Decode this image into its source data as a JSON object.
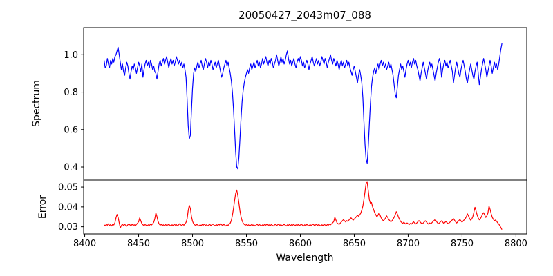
{
  "title": "20050427_2043m07_088",
  "colors": {
    "spectrum_line": "#0000ff",
    "error_line": "#ff0000",
    "axis": "#000000",
    "background": "#ffffff"
  },
  "x_axis": {
    "label": "Wavelength",
    "tick_labels": [
      "8400",
      "8450",
      "8500",
      "8550",
      "8600",
      "8650",
      "8700",
      "8750",
      "8800"
    ],
    "range": [
      8399,
      8810
    ]
  },
  "chart_data": [
    {
      "type": "line",
      "name": "spectrum",
      "ylabel": "Spectrum",
      "line_color": "#0000ff",
      "grid": false,
      "legend": "none",
      "x_start": 8418,
      "x_step": 1,
      "ylim": [
        0.33,
        1.145
      ],
      "ytick_labels": [
        "0.4",
        "0.6",
        "0.8",
        "1.0"
      ],
      "values": [
        0.97,
        0.93,
        0.94,
        0.98,
        0.95,
        0.93,
        0.97,
        0.95,
        0.98,
        0.96,
        0.99,
        1.0,
        1.02,
        1.04,
        1.0,
        0.96,
        0.92,
        0.95,
        0.91,
        0.89,
        0.93,
        0.96,
        0.94,
        0.9,
        0.87,
        0.91,
        0.94,
        0.92,
        0.95,
        0.93,
        0.9,
        0.93,
        0.96,
        0.94,
        0.91,
        0.95,
        0.88,
        0.92,
        0.95,
        0.97,
        0.94,
        0.96,
        0.93,
        0.97,
        0.95,
        0.92,
        0.94,
        0.91,
        0.9,
        0.87,
        0.91,
        0.95,
        0.97,
        0.94,
        0.96,
        0.98,
        0.95,
        0.97,
        0.99,
        0.96,
        0.93,
        0.96,
        0.98,
        0.95,
        0.97,
        0.94,
        0.96,
        0.99,
        0.97,
        0.95,
        0.97,
        0.94,
        0.96,
        0.93,
        0.95,
        0.92,
        0.88,
        0.76,
        0.62,
        0.55,
        0.57,
        0.7,
        0.82,
        0.9,
        0.93,
        0.91,
        0.94,
        0.96,
        0.93,
        0.95,
        0.97,
        0.94,
        0.92,
        0.95,
        0.98,
        0.96,
        0.93,
        0.96,
        0.94,
        0.97,
        0.95,
        0.92,
        0.94,
        0.96,
        0.93,
        0.95,
        0.97,
        0.94,
        0.91,
        0.88,
        0.9,
        0.93,
        0.95,
        0.97,
        0.94,
        0.96,
        0.93,
        0.9,
        0.86,
        0.8,
        0.71,
        0.6,
        0.48,
        0.4,
        0.39,
        0.45,
        0.55,
        0.66,
        0.75,
        0.81,
        0.85,
        0.88,
        0.9,
        0.92,
        0.9,
        0.93,
        0.95,
        0.92,
        0.94,
        0.96,
        0.93,
        0.95,
        0.97,
        0.94,
        0.96,
        0.93,
        0.95,
        0.98,
        0.95,
        0.97,
        0.99,
        0.96,
        0.94,
        0.97,
        0.95,
        0.98,
        0.96,
        0.93,
        0.95,
        0.97,
        1.0,
        0.97,
        0.94,
        0.96,
        0.99,
        0.96,
        0.98,
        0.95,
        0.97,
        1.0,
        1.02,
        0.98,
        0.95,
        0.97,
        0.94,
        0.96,
        0.98,
        0.95,
        0.93,
        0.96,
        0.98,
        0.96,
        0.99,
        0.97,
        0.94,
        0.96,
        0.93,
        0.95,
        0.97,
        0.95,
        0.92,
        0.95,
        0.97,
        0.99,
        0.96,
        0.94,
        0.96,
        0.98,
        0.95,
        0.97,
        0.94,
        0.96,
        0.99,
        0.97,
        0.95,
        0.98,
        0.96,
        0.93,
        0.96,
        0.98,
        1.0,
        0.97,
        0.95,
        0.98,
        0.96,
        0.94,
        0.97,
        0.95,
        0.92,
        0.95,
        0.97,
        0.94,
        0.96,
        0.93,
        0.95,
        0.97,
        0.94,
        0.96,
        0.93,
        0.91,
        0.89,
        0.92,
        0.94,
        0.91,
        0.88,
        0.85,
        0.89,
        0.92,
        0.89,
        0.85,
        0.77,
        0.64,
        0.52,
        0.44,
        0.42,
        0.51,
        0.63,
        0.74,
        0.83,
        0.88,
        0.91,
        0.93,
        0.9,
        0.93,
        0.95,
        0.92,
        0.95,
        0.97,
        0.94,
        0.96,
        0.93,
        0.95,
        0.92,
        0.94,
        0.96,
        0.93,
        0.95,
        0.92,
        0.89,
        0.84,
        0.79,
        0.77,
        0.83,
        0.89,
        0.92,
        0.95,
        0.92,
        0.94,
        0.91,
        0.88,
        0.92,
        0.95,
        0.97,
        0.94,
        0.96,
        0.93,
        0.96,
        0.98,
        0.95,
        0.97,
        0.94,
        0.92,
        0.89,
        0.86,
        0.9,
        0.93,
        0.96,
        0.93,
        0.9,
        0.87,
        0.91,
        0.94,
        0.96,
        0.93,
        0.95,
        0.92,
        0.89,
        0.86,
        0.9,
        0.93,
        0.96,
        0.98,
        0.95,
        0.88,
        0.92,
        0.95,
        0.97,
        0.94,
        0.96,
        0.93,
        0.95,
        0.97,
        0.94,
        0.91,
        0.85,
        0.89,
        0.93,
        0.96,
        0.93,
        0.9,
        0.88,
        0.92,
        0.95,
        0.97,
        0.94,
        0.91,
        0.87,
        0.85,
        0.89,
        0.92,
        0.95,
        0.92,
        0.89,
        0.87,
        0.91,
        0.94,
        0.96,
        0.9,
        0.84,
        0.88,
        0.92,
        0.95,
        0.98,
        0.95,
        0.92,
        0.88,
        0.91,
        0.94,
        0.97,
        0.94,
        0.9,
        0.93,
        0.96,
        0.93,
        0.95,
        0.92,
        0.95,
        0.99,
        1.03,
        1.06
      ]
    },
    {
      "type": "line",
      "name": "error",
      "ylabel": "Error",
      "line_color": "#ff0000",
      "grid": false,
      "legend": "none",
      "x_start": 8418,
      "x_step": 1,
      "ylim": [
        0.0264,
        0.0535
      ],
      "ytick_labels": [
        "0.03",
        "0.04",
        "0.05"
      ],
      "values": [
        0.031,
        0.0305,
        0.0312,
        0.0308,
        0.0315,
        0.0306,
        0.0311,
        0.0304,
        0.0313,
        0.0309,
        0.032,
        0.0345,
        0.0362,
        0.0348,
        0.032,
        0.0294,
        0.0306,
        0.0314,
        0.0305,
        0.0312,
        0.0308,
        0.0303,
        0.031,
        0.0315,
        0.0309,
        0.0306,
        0.0312,
        0.0307,
        0.031,
        0.0305,
        0.0312,
        0.0318,
        0.0325,
        0.0345,
        0.033,
        0.0316,
        0.031,
        0.0306,
        0.0311,
        0.0308,
        0.0305,
        0.031,
        0.0307,
        0.0312,
        0.0309,
        0.0315,
        0.0322,
        0.034,
        0.037,
        0.0352,
        0.0328,
        0.0314,
        0.0308,
        0.0312,
        0.0306,
        0.031,
        0.0305,
        0.0311,
        0.0307,
        0.0309,
        0.0312,
        0.0308,
        0.0304,
        0.031,
        0.0306,
        0.0313,
        0.0308,
        0.0311,
        0.0305,
        0.0309,
        0.0315,
        0.031,
        0.0306,
        0.0312,
        0.0308,
        0.0315,
        0.0322,
        0.034,
        0.0382,
        0.0408,
        0.0392,
        0.0352,
        0.0328,
        0.0315,
        0.031,
        0.0306,
        0.0312,
        0.0308,
        0.0304,
        0.031,
        0.0306,
        0.0311,
        0.0308,
        0.0313,
        0.0307,
        0.031,
        0.0305,
        0.0309,
        0.0312,
        0.0306,
        0.031,
        0.0314,
        0.0308,
        0.0305,
        0.0311,
        0.0307,
        0.0312,
        0.0309,
        0.0315,
        0.031,
        0.0306,
        0.0312,
        0.0308,
        0.0304,
        0.031,
        0.0307,
        0.0313,
        0.0318,
        0.0332,
        0.0358,
        0.0392,
        0.0432,
        0.0468,
        0.0485,
        0.0458,
        0.042,
        0.038,
        0.035,
        0.033,
        0.0318,
        0.0312,
        0.0308,
        0.0311,
        0.0306,
        0.031,
        0.0305,
        0.0308,
        0.0312,
        0.0307,
        0.031,
        0.0304,
        0.0309,
        0.0313,
        0.0306,
        0.0311,
        0.0308,
        0.0305,
        0.031,
        0.0307,
        0.0312,
        0.0308,
        0.0313,
        0.0306,
        0.031,
        0.0305,
        0.0311,
        0.0308,
        0.0304,
        0.0309,
        0.0312,
        0.0306,
        0.031,
        0.0313,
        0.0307,
        0.0311,
        0.0305,
        0.0309,
        0.0312,
        0.0308,
        0.0304,
        0.031,
        0.0307,
        0.0312,
        0.0306,
        0.0311,
        0.0308,
        0.0313,
        0.0305,
        0.031,
        0.0307,
        0.0311,
        0.0306,
        0.0309,
        0.0313,
        0.0308,
        0.0304,
        0.031,
        0.0306,
        0.0312,
        0.0308,
        0.0305,
        0.0311,
        0.0307,
        0.031,
        0.0313,
        0.0306,
        0.0309,
        0.0312,
        0.0307,
        0.0311,
        0.0308,
        0.0304,
        0.031,
        0.0306,
        0.0312,
        0.0309,
        0.0305,
        0.0311,
        0.0308,
        0.0313,
        0.031,
        0.0315,
        0.032,
        0.0326,
        0.0348,
        0.0334,
        0.032,
        0.0315,
        0.0312,
        0.0318,
        0.0324,
        0.033,
        0.0336,
        0.033,
        0.0324,
        0.0331,
        0.0327,
        0.0333,
        0.034,
        0.0345,
        0.0339,
        0.0333,
        0.0339,
        0.0345,
        0.0351,
        0.0358,
        0.0353,
        0.036,
        0.0368,
        0.0384,
        0.0404,
        0.0438,
        0.0478,
        0.052,
        0.0524,
        0.0482,
        0.0436,
        0.0418,
        0.0422,
        0.04,
        0.0386,
        0.037,
        0.036,
        0.035,
        0.0358,
        0.037,
        0.0358,
        0.0344,
        0.0336,
        0.033,
        0.0336,
        0.0344,
        0.0355,
        0.0347,
        0.0337,
        0.033,
        0.0325,
        0.033,
        0.0338,
        0.0348,
        0.036,
        0.0376,
        0.0364,
        0.0349,
        0.0337,
        0.0327,
        0.0321,
        0.0317,
        0.0323,
        0.0317,
        0.0313,
        0.0319,
        0.0315,
        0.0311,
        0.0317,
        0.0313,
        0.0319,
        0.0325,
        0.0319,
        0.0314,
        0.0319,
        0.0325,
        0.0331,
        0.0325,
        0.0319,
        0.0314,
        0.0319,
        0.0325,
        0.033,
        0.0324,
        0.0317,
        0.0313,
        0.0319,
        0.0314,
        0.032,
        0.0326,
        0.0331,
        0.0337,
        0.0329,
        0.0321,
        0.0315,
        0.0319,
        0.0325,
        0.033,
        0.0324,
        0.0317,
        0.0321,
        0.0327,
        0.0321,
        0.0315,
        0.0319,
        0.0324,
        0.0329,
        0.0335,
        0.0341,
        0.0333,
        0.0325,
        0.0319,
        0.0325,
        0.0331,
        0.0337,
        0.0329,
        0.0323,
        0.0329,
        0.0335,
        0.0341,
        0.0351,
        0.0365,
        0.0354,
        0.0341,
        0.0333,
        0.0339,
        0.0351,
        0.0374,
        0.0398,
        0.0379,
        0.0359,
        0.0344,
        0.0335,
        0.0341,
        0.0351,
        0.0364,
        0.0371,
        0.0359,
        0.0347,
        0.0355,
        0.0369,
        0.0404,
        0.0388,
        0.0366,
        0.0348,
        0.0338,
        0.033,
        0.0334,
        0.0328,
        0.032,
        0.0314,
        0.0306,
        0.0296,
        0.0286
      ]
    }
  ]
}
